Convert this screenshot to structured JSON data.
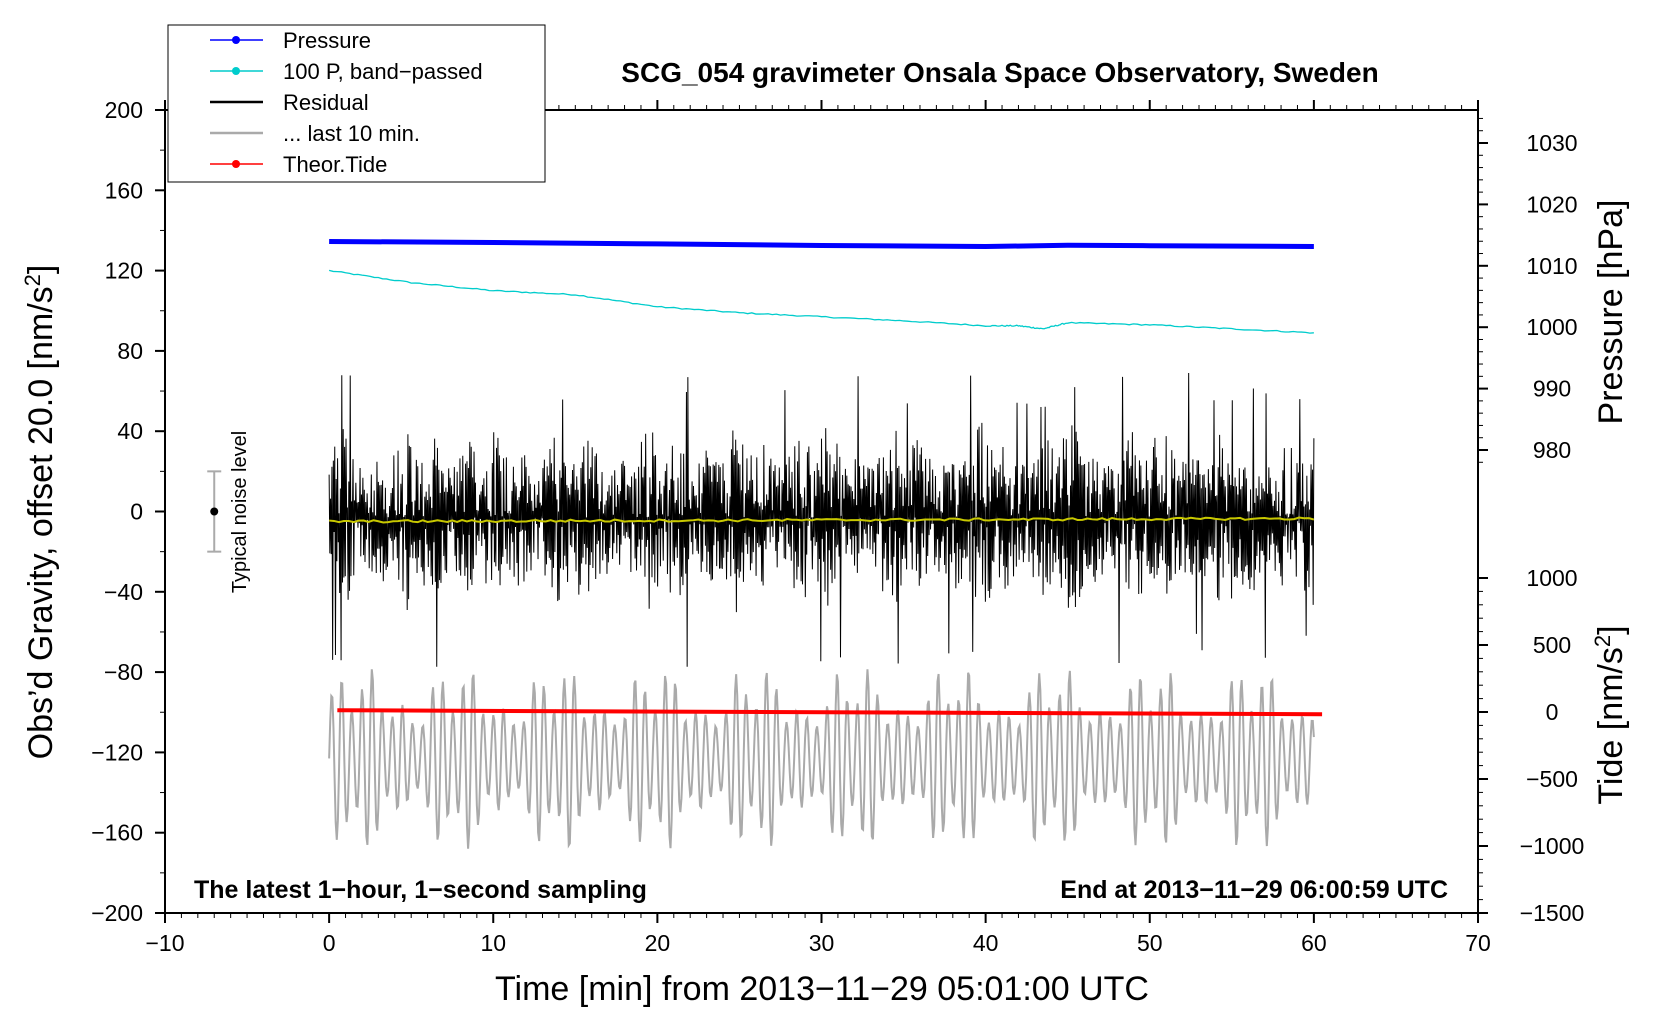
{
  "chart_data": {
    "type": "line",
    "title": "SCG_054 gravimeter Onsala Space Observatory, Sweden",
    "xlabel": "Time [min] from 2013−11−29 05:01:00 UTC",
    "ylabel_left": "Obs’d Gravity, offset 20.0 [nm/s",
    "ylabel_left_sup": "2",
    "ylabel_left_end": "]",
    "ylabel_right_pressure": "Pressure [hPa]",
    "ylabel_right_tide": "Tide [nm/s",
    "ylabel_right_tide_sup": "2",
    "ylabel_right_tide_end": "]",
    "xlim": [
      -10,
      70
    ],
    "ylim_left": [
      -200,
      200
    ],
    "x_ticks": [
      "−10",
      "0",
      "10",
      "20",
      "30",
      "40",
      "50",
      "60",
      "70"
    ],
    "x_tick_values": [
      -10,
      0,
      10,
      20,
      30,
      40,
      50,
      60,
      70
    ],
    "y_ticks": [
      "200",
      "160",
      "120",
      "80",
      "40",
      "0",
      "−40",
      "−80",
      "−120",
      "−160",
      "−200"
    ],
    "y_tick_values": [
      200,
      160,
      120,
      80,
      40,
      0,
      -40,
      -80,
      -120,
      -160,
      -200
    ],
    "pressure_ticks": [
      "1030",
      "1020",
      "1010",
      "1000",
      "990",
      "980"
    ],
    "pressure_tick_values": [
      1030,
      1020,
      1010,
      1000,
      990,
      980
    ],
    "tide_ticks": [
      "1000",
      "500",
      "0",
      "−500",
      "−1000",
      "−1500"
    ],
    "tide_tick_values": [
      1000,
      500,
      0,
      -500,
      -1000,
      -1500
    ],
    "legend": [
      {
        "label": "Pressure",
        "color": "#0000ff",
        "marker": true
      },
      {
        "label": "100 P, band−passed",
        "color": "#00cccc",
        "marker": true
      },
      {
        "label": "Residual",
        "color": "#000000",
        "marker": false
      },
      {
        "label": "... last 10 min.",
        "color": "#aaaaaa",
        "marker": false
      },
      {
        "label": "Theor.Tide",
        "color": "#ff0000",
        "marker": true
      }
    ],
    "noise_label": "Typical noise level",
    "noise_range": [
      -20,
      20
    ],
    "noise_x": -7,
    "footer_left": "The latest 1−hour, 1−second sampling",
    "footer_right": "End at 2013−11−29 06:00:59 UTC",
    "series": [
      {
        "name": "Pressure",
        "color": "#0000ff",
        "x": [
          0,
          10,
          20,
          30,
          40,
          45,
          50,
          60
        ],
        "y": [
          134.5,
          134,
          133.3,
          132.5,
          132,
          132.6,
          132.4,
          132
        ]
      },
      {
        "name": "100 P, band-passed",
        "color": "#00cccc",
        "x": [
          0,
          5,
          10,
          15,
          20,
          25,
          30,
          35,
          40,
          42,
          43.5,
          45,
          50,
          55,
          60
        ],
        "y": [
          120,
          114,
          110,
          108,
          102,
          99,
          97,
          95,
          92.5,
          92.5,
          91,
          94,
          93,
          91,
          89
        ]
      },
      {
        "name": "Residual",
        "color": "#000000",
        "x_range": [
          0,
          60
        ],
        "center": -3,
        "amplitude": 40
      },
      {
        "name": "Residual mean",
        "color": "#c8c800",
        "x": [
          0,
          60
        ],
        "y": [
          -5,
          -3.5
        ]
      },
      {
        "name": "... last 10 min.",
        "color": "#aaaaaa",
        "x_range": [
          0,
          60
        ],
        "center": -123,
        "amplitude": 35
      },
      {
        "name": "Theor.Tide",
        "color": "#ff0000",
        "x": [
          0.5,
          60.5
        ],
        "y": [
          -99,
          -101
        ]
      }
    ]
  }
}
